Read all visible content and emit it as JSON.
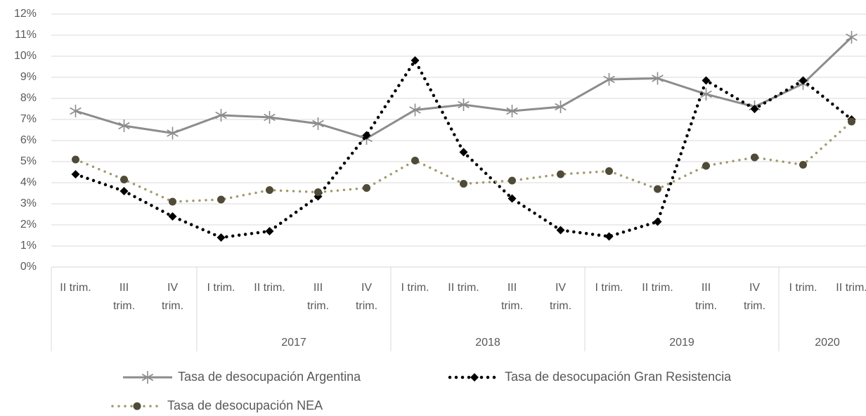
{
  "chart_data": {
    "type": "line",
    "groups": [
      {
        "name": null,
        "categories": [
          "II trim.",
          "III trim.",
          "IV trim."
        ]
      },
      {
        "name": "2017",
        "categories": [
          "I trim.",
          "II trim.",
          "III trim.",
          "IV trim."
        ]
      },
      {
        "name": "2018",
        "categories": [
          "I trim.",
          "II trim.",
          "III trim.",
          "IV trim."
        ]
      },
      {
        "name": "2019",
        "categories": [
          "I trim.",
          "II trim.",
          "III trim.",
          "IV trim."
        ]
      },
      {
        "name": "2020",
        "categories": [
          "I trim.",
          "II trim."
        ]
      }
    ],
    "series": [
      {
        "name": "Tasa de desocupación Argentina",
        "color": "#8c8c8c",
        "line_style": "solid",
        "marker": "asterisk",
        "marker_color": "#8c8c8c",
        "values": [
          7.4,
          6.7,
          6.35,
          7.2,
          7.1,
          6.8,
          6.1,
          7.45,
          7.7,
          7.4,
          7.6,
          8.9,
          8.95,
          8.2,
          7.6,
          8.7,
          10.9
        ]
      },
      {
        "name": "Tasa de desocupación Gran Resistencia",
        "color": "#000000",
        "line_style": "dotted",
        "marker": "diamond",
        "marker_color": "#000000",
        "values": [
          4.4,
          3.6,
          2.4,
          1.4,
          1.7,
          3.35,
          6.25,
          9.8,
          5.45,
          3.25,
          1.75,
          1.45,
          2.15,
          8.85,
          7.5,
          8.85,
          7.0
        ]
      },
      {
        "name": "Tasa de desocupación NEA",
        "color": "#a09a6a",
        "line_style": "dotted",
        "marker": "circle",
        "marker_color": "#4f4b38",
        "values": [
          5.1,
          4.15,
          3.1,
          3.2,
          3.65,
          3.55,
          3.75,
          5.05,
          3.95,
          4.1,
          4.4,
          4.55,
          3.7,
          4.8,
          5.2,
          4.85,
          6.9
        ]
      }
    ],
    "ylim": [
      0,
      12
    ],
    "yticks": [
      {
        "value": 0,
        "label": "0%"
      },
      {
        "value": 1,
        "label": "1%"
      },
      {
        "value": 2,
        "label": "2%"
      },
      {
        "value": 3,
        "label": "3%"
      },
      {
        "value": 4,
        "label": "4%"
      },
      {
        "value": 5,
        "label": "5%"
      },
      {
        "value": 6,
        "label": "6%"
      },
      {
        "value": 7,
        "label": "7%"
      },
      {
        "value": 8,
        "label": "8%"
      },
      {
        "value": 9,
        "label": "9%"
      },
      {
        "value": 10,
        "label": "10%"
      },
      {
        "value": 11,
        "label": "11%"
      },
      {
        "value": 12,
        "label": "12%"
      }
    ],
    "grid": true
  }
}
